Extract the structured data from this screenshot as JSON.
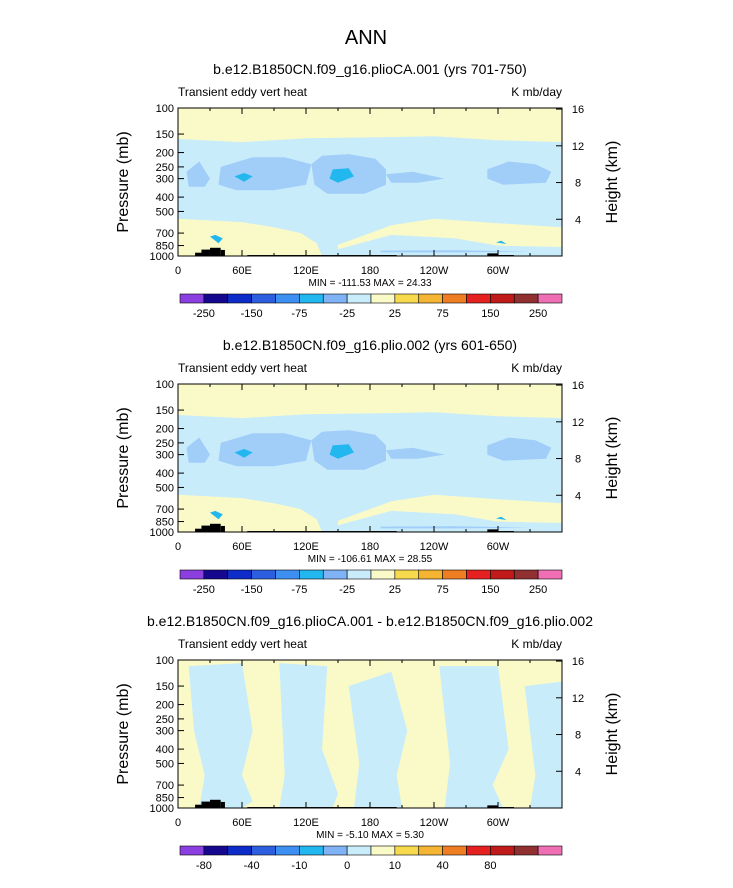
{
  "figure": {
    "title": "ANN"
  },
  "palette": {
    "ocean_light": "#fafac8",
    "very_light_blue": "#c9ecfa",
    "light_blue": "#a1cdf9",
    "mid_blue": "#7fb3f6",
    "bright_cyan": "#22b7ef",
    "land": "#000000"
  },
  "chart_data": [
    {
      "type": "contour",
      "title": "b.e12.B1850CN.f09_g16.plioCA.001 (yrs 701-750)",
      "left_label": "Transient eddy vert heat",
      "right_label": "K mb/day",
      "ylabel": "Pressure (mb)",
      "y2label": "Height (km)",
      "x_ticks": [
        "0",
        "60E",
        "120E",
        "180",
        "120W",
        "60W"
      ],
      "x_tick_values": [
        0,
        60,
        120,
        180,
        240,
        300
      ],
      "xlim": [
        0,
        360
      ],
      "y_ticks": [
        "100",
        "150",
        "200",
        "250",
        "300",
        "400",
        "500",
        "700",
        "850",
        "1000"
      ],
      "y_tick_values": [
        100,
        150,
        200,
        250,
        300,
        400,
        500,
        700,
        850,
        1000
      ],
      "ylim": [
        1000,
        100
      ],
      "height_ticks": [
        "4",
        "8",
        "12",
        "16"
      ],
      "height_tick_values": [
        4,
        8,
        12,
        16
      ],
      "stats": "MIN = -111.53   MAX =  24.33",
      "levels": [
        -250,
        -200,
        -150,
        -100,
        -75,
        -50,
        -25,
        0,
        25,
        50,
        75,
        100,
        150,
        200,
        250
      ],
      "colorbar_labels": [
        "-250",
        "-150",
        "-75",
        "-25",
        "25",
        "75",
        "150",
        "250"
      ],
      "colorbar_colors": [
        "#8c3fe0",
        "#16088e",
        "#0d2cc8",
        "#2c5fe0",
        "#3d8ff2",
        "#22b7ef",
        "#7fb3f6",
        "#c9ecfa",
        "#fafac8",
        "#f7d94d",
        "#f5b431",
        "#ef7d22",
        "#e52020",
        "#c01a1a",
        "#913030",
        "#f06fb4"
      ]
    },
    {
      "type": "contour",
      "title": "b.e12.B1850CN.f09_g16.plio.002 (yrs 601-650)",
      "left_label": "Transient eddy vert heat",
      "right_label": "K mb/day",
      "ylabel": "Pressure (mb)",
      "y2label": "Height (km)",
      "x_ticks": [
        "0",
        "60E",
        "120E",
        "180",
        "120W",
        "60W"
      ],
      "x_tick_values": [
        0,
        60,
        120,
        180,
        240,
        300
      ],
      "xlim": [
        0,
        360
      ],
      "y_ticks": [
        "100",
        "150",
        "200",
        "250",
        "300",
        "400",
        "500",
        "700",
        "850",
        "1000"
      ],
      "y_tick_values": [
        100,
        150,
        200,
        250,
        300,
        400,
        500,
        700,
        850,
        1000
      ],
      "ylim": [
        1000,
        100
      ],
      "height_ticks": [
        "4",
        "8",
        "12",
        "16"
      ],
      "height_tick_values": [
        4,
        8,
        12,
        16
      ],
      "stats": "MIN = -106.61   MAX =  28.55",
      "levels": [
        -250,
        -200,
        -150,
        -100,
        -75,
        -50,
        -25,
        0,
        25,
        50,
        75,
        100,
        150,
        200,
        250
      ],
      "colorbar_labels": [
        "-250",
        "-150",
        "-75",
        "-25",
        "25",
        "75",
        "150",
        "250"
      ],
      "colorbar_colors": [
        "#8c3fe0",
        "#16088e",
        "#0d2cc8",
        "#2c5fe0",
        "#3d8ff2",
        "#22b7ef",
        "#7fb3f6",
        "#c9ecfa",
        "#fafac8",
        "#f7d94d",
        "#f5b431",
        "#ef7d22",
        "#e52020",
        "#c01a1a",
        "#913030",
        "#f06fb4"
      ]
    },
    {
      "type": "contour",
      "title": "b.e12.B1850CN.f09_g16.plioCA.001 - b.e12.B1850CN.f09_g16.plio.002",
      "left_label": "Transient eddy vert heat",
      "right_label": "K mb/day",
      "ylabel": "Pressure (mb)",
      "y2label": "Height (km)",
      "x_ticks": [
        "0",
        "60E",
        "120E",
        "180",
        "120W",
        "60W"
      ],
      "x_tick_values": [
        0,
        60,
        120,
        180,
        240,
        300
      ],
      "xlim": [
        0,
        360
      ],
      "y_ticks": [
        "100",
        "150",
        "200",
        "250",
        "300",
        "400",
        "500",
        "700",
        "850",
        "1000"
      ],
      "y_tick_values": [
        100,
        150,
        200,
        250,
        300,
        400,
        500,
        700,
        850,
        1000
      ],
      "ylim": [
        1000,
        100
      ],
      "height_ticks": [
        "4",
        "8",
        "12",
        "16"
      ],
      "height_tick_values": [
        4,
        8,
        12,
        16
      ],
      "stats": "MIN = -5.10   MAX =  5.30",
      "levels": [
        -100,
        -80,
        -60,
        -40,
        -20,
        -10,
        -5,
        0,
        5,
        10,
        20,
        40,
        60,
        80,
        100
      ],
      "colorbar_labels": [
        "-80",
        "-40",
        "-10",
        "0",
        "10",
        "40",
        "80"
      ],
      "colorbar_colors": [
        "#8c3fe0",
        "#16088e",
        "#0d2cc8",
        "#2c5fe0",
        "#3d8ff2",
        "#22b7ef",
        "#7fb3f6",
        "#c9ecfa",
        "#fafac8",
        "#f7d94d",
        "#f5b431",
        "#ef7d22",
        "#e52020",
        "#c01a1a",
        "#913030",
        "#f06fb4"
      ]
    }
  ]
}
